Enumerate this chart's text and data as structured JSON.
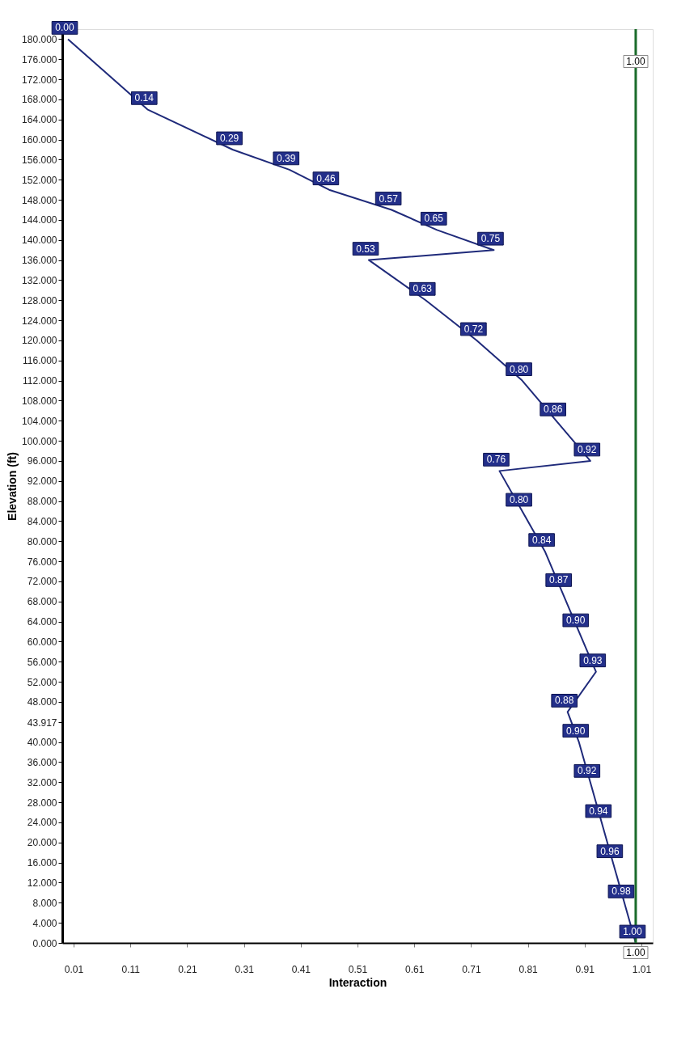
{
  "chart_data": {
    "type": "line",
    "orientation": "horizontal",
    "xlabel": "Interaction",
    "ylabel": "Elevation (ft)",
    "x": [
      180,
      166,
      158,
      154,
      150,
      146,
      142,
      138,
      136,
      128,
      120,
      112,
      104,
      96,
      94,
      86,
      78,
      70,
      62,
      54,
      46,
      40,
      32,
      24,
      16,
      8,
      0
    ],
    "series": [
      {
        "color": "#1f2a7a",
        "values": [
          0.0,
          0.14,
          0.29,
          0.39,
          0.46,
          0.57,
          0.65,
          0.75,
          0.53,
          0.63,
          0.72,
          0.8,
          0.86,
          0.92,
          0.76,
          0.8,
          0.84,
          0.87,
          0.9,
          0.93,
          0.88,
          0.9,
          0.92,
          0.94,
          0.96,
          0.98,
          1.0
        ],
        "value_labels": [
          "0.00",
          "0.14",
          "0.29",
          "0.39",
          "0.46",
          "0.57",
          "0.65",
          "0.75",
          "0.53",
          "0.63",
          "0.72",
          "0.80",
          "0.86",
          "0.92",
          "0.76",
          "0.80",
          "0.84",
          "0.87",
          "0.90",
          "0.93",
          "0.88",
          "0.90",
          "0.92",
          "0.94",
          "0.96",
          "0.98",
          "1.00"
        ]
      }
    ],
    "marker": "none",
    "xlim": [
      -0.01,
      1.03
    ],
    "xticks": [
      0.01,
      0.11,
      0.21,
      0.31,
      0.41,
      0.51,
      0.61,
      0.71,
      0.81,
      0.91,
      1.01
    ],
    "ylim": [
      0,
      182
    ],
    "yticks": [
      {
        "value": 0,
        "label": "0.000"
      },
      {
        "value": 4,
        "label": "4.000"
      },
      {
        "value": 8,
        "label": "8.000"
      },
      {
        "value": 12,
        "label": "12.000"
      },
      {
        "value": 16,
        "label": "16.000"
      },
      {
        "value": 20,
        "label": "20.000"
      },
      {
        "value": 24,
        "label": "24.000"
      },
      {
        "value": 28,
        "label": "28.000"
      },
      {
        "value": 32,
        "label": "32.000"
      },
      {
        "value": 36,
        "label": "36.000"
      },
      {
        "value": 40,
        "label": "40.000"
      },
      {
        "value": 43.917,
        "label": "43.917"
      },
      {
        "value": 48,
        "label": "48.000"
      },
      {
        "value": 52,
        "label": "52.000"
      },
      {
        "value": 56,
        "label": "56.000"
      },
      {
        "value": 60,
        "label": "60.000"
      },
      {
        "value": 64,
        "label": "64.000"
      },
      {
        "value": 68,
        "label": "68.000"
      },
      {
        "value": 72,
        "label": "72.000"
      },
      {
        "value": 76,
        "label": "76.000"
      },
      {
        "value": 80,
        "label": "80.000"
      },
      {
        "value": 84,
        "label": "84.000"
      },
      {
        "value": 88,
        "label": "88.000"
      },
      {
        "value": 92,
        "label": "92.000"
      },
      {
        "value": 96,
        "label": "96.000"
      },
      {
        "value": 100,
        "label": "100.000"
      },
      {
        "value": 104,
        "label": "104.000"
      },
      {
        "value": 108,
        "label": "108.000"
      },
      {
        "value": 112,
        "label": "112.000"
      },
      {
        "value": 116,
        "label": "116.000"
      },
      {
        "value": 120,
        "label": "120.000"
      },
      {
        "value": 124,
        "label": "124.000"
      },
      {
        "value": 128,
        "label": "128.000"
      },
      {
        "value": 132,
        "label": "132.000"
      },
      {
        "value": 136,
        "label": "136.000"
      },
      {
        "value": 140,
        "label": "140.000"
      },
      {
        "value": 144,
        "label": "144.000"
      },
      {
        "value": 148,
        "label": "148.000"
      },
      {
        "value": 152,
        "label": "152.000"
      },
      {
        "value": 156,
        "label": "156.000"
      },
      {
        "value": 160,
        "label": "160.000"
      },
      {
        "value": 164,
        "label": "164.000"
      },
      {
        "value": 168,
        "label": "168.000"
      },
      {
        "value": 172,
        "label": "172.000"
      },
      {
        "value": 176,
        "label": "176.000"
      },
      {
        "value": 180,
        "label": "180.000"
      }
    ],
    "ref_lines": [
      {
        "axis": "x",
        "value": 1.0,
        "label": "1.00",
        "color": "#1a6b2a"
      }
    ]
  }
}
